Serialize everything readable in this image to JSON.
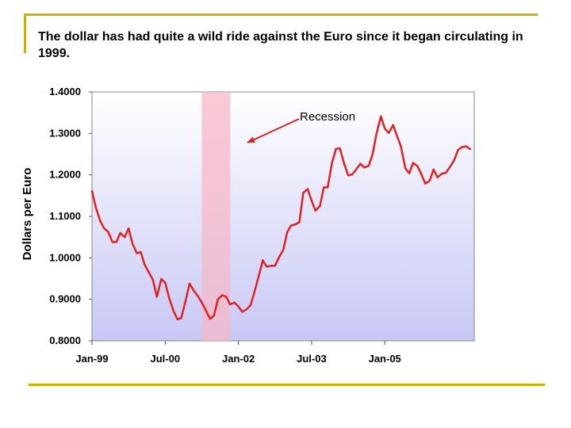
{
  "slide": {
    "title": "The dollar has had quite a wild ride against the Euro since it began circulating in 1999."
  },
  "chart_data": {
    "type": "line",
    "title": "",
    "xlabel": "",
    "ylabel": "Dollars per Euro",
    "ylim": [
      0.8,
      1.4
    ],
    "yticks": [
      "1.4000",
      "1.3000",
      "1.2000",
      "1.1000",
      "1.0000",
      "0.9000",
      "0.8000"
    ],
    "ytick_values": [
      1.4,
      1.3,
      1.2,
      1.1,
      1.0,
      0.9,
      0.8
    ],
    "xlim": [
      1999.0,
      2006.833
    ],
    "xticks": [
      "Jan-99",
      "Jul-00",
      "Jan-02",
      "Jul-03",
      "Jan-05"
    ],
    "xtick_values": [
      1999.0,
      2000.5,
      2002.0,
      2003.5,
      2005.0
    ],
    "recession": {
      "label": "Recession",
      "start": 2001.25,
      "end": 2001.833
    },
    "line_color": "#dd2222",
    "recession_color": "#f5b8c8",
    "series": [
      {
        "name": "Dollars per Euro",
        "x": [
          1999.0,
          1999.08,
          1999.17,
          1999.25,
          1999.33,
          1999.42,
          1999.5,
          1999.58,
          1999.67,
          1999.75,
          1999.83,
          1999.92,
          2000.0,
          2000.08,
          2000.17,
          2000.25,
          2000.33,
          2000.42,
          2000.5,
          2000.58,
          2000.67,
          2000.75,
          2000.83,
          2000.92,
          2001.0,
          2001.08,
          2001.17,
          2001.25,
          2001.33,
          2001.42,
          2001.5,
          2001.58,
          2001.67,
          2001.75,
          2001.83,
          2001.92,
          2002.0,
          2002.08,
          2002.17,
          2002.25,
          2002.33,
          2002.42,
          2002.5,
          2002.58,
          2002.67,
          2002.75,
          2002.83,
          2002.92,
          2003.0,
          2003.08,
          2003.17,
          2003.25,
          2003.33,
          2003.42,
          2003.5,
          2003.58,
          2003.67,
          2003.75,
          2003.83,
          2003.92,
          2004.0,
          2004.08,
          2004.17,
          2004.25,
          2004.33,
          2004.42,
          2004.5,
          2004.58,
          2004.67,
          2004.75,
          2004.83,
          2004.92,
          2005.0,
          2005.08,
          2005.17,
          2005.25,
          2005.33,
          2005.42,
          2005.5,
          2005.58,
          2005.67,
          2005.75,
          2005.83,
          2005.92,
          2006.0,
          2006.08,
          2006.17,
          2006.25,
          2006.33,
          2006.42,
          2006.5,
          2006.58,
          2006.67,
          2006.75
        ],
        "values": [
          1.161,
          1.121,
          1.088,
          1.071,
          1.063,
          1.038,
          1.038,
          1.06,
          1.05,
          1.071,
          1.034,
          1.011,
          1.014,
          0.983,
          0.964,
          0.947,
          0.906,
          0.949,
          0.94,
          0.904,
          0.872,
          0.852,
          0.855,
          0.897,
          0.938,
          0.922,
          0.908,
          0.892,
          0.874,
          0.853,
          0.861,
          0.9,
          0.91,
          0.906,
          0.888,
          0.892,
          0.883,
          0.87,
          0.876,
          0.886,
          0.918,
          0.957,
          0.994,
          0.979,
          0.981,
          0.981,
          1.001,
          1.019,
          1.062,
          1.078,
          1.081,
          1.086,
          1.157,
          1.166,
          1.138,
          1.114,
          1.125,
          1.17,
          1.17,
          1.23,
          1.263,
          1.264,
          1.226,
          1.199,
          1.201,
          1.214,
          1.227,
          1.218,
          1.222,
          1.25,
          1.299,
          1.341,
          1.312,
          1.301,
          1.32,
          1.294,
          1.269,
          1.216,
          1.204,
          1.229,
          1.221,
          1.201,
          1.179,
          1.186,
          1.213,
          1.194,
          1.203,
          1.205,
          1.218,
          1.235,
          1.26,
          1.267,
          1.269,
          1.262
        ]
      }
    ]
  }
}
